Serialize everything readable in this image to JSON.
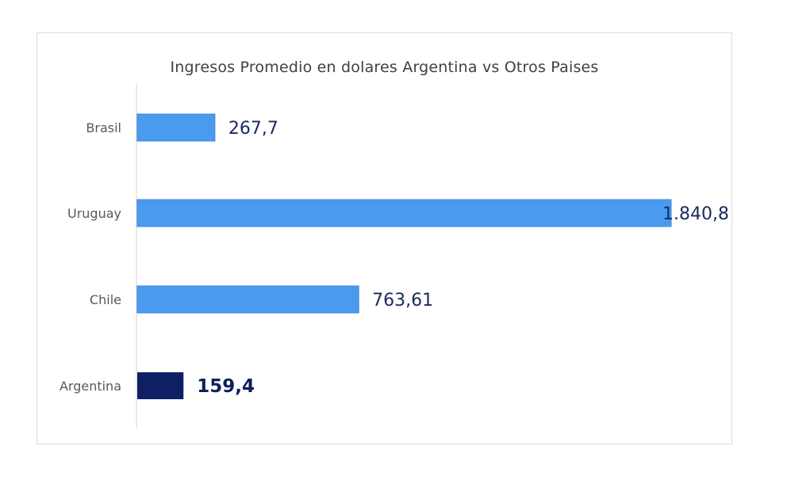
{
  "chart_data": {
    "type": "bar",
    "orientation": "horizontal",
    "title": "Ingresos Promedio en dolares Argentina vs Otros Paises",
    "categories": [
      "Brasil",
      "Uruguay",
      "Chile",
      "Argentina"
    ],
    "values": [
      267.7,
      1840.8,
      763.61,
      159.4
    ],
    "value_labels": [
      "267,7",
      "1.840,8",
      "763,61",
      "159,4"
    ],
    "colors": [
      "#4a9bf0",
      "#4a9bf0",
      "#4a9bf0",
      "#0e1f63"
    ],
    "highlight": "Argentina",
    "xlim": [
      0,
      1840.8
    ],
    "grid": false,
    "legend": false
  }
}
